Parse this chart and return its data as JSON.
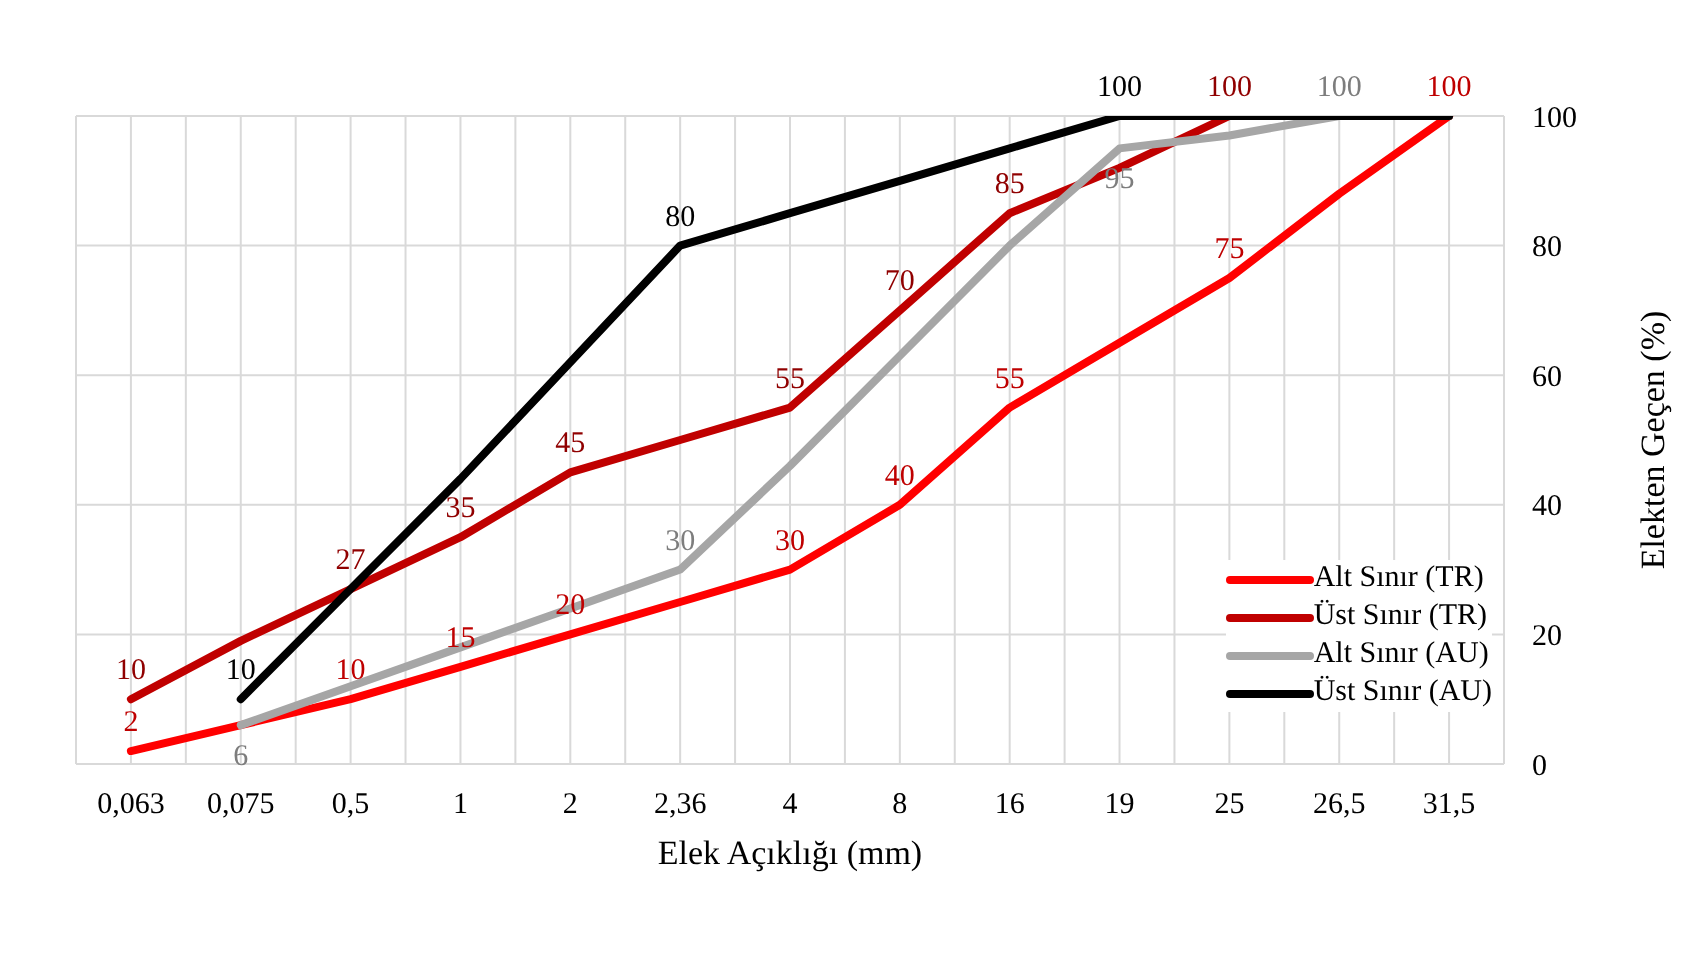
{
  "chart_data": {
    "type": "line",
    "xlabel": "Elek Açıklığı (mm)",
    "ylabel": "Elekten Geçen (%)",
    "categories": [
      "0,063",
      "0,075",
      "0,5",
      "1",
      "2",
      "2,36",
      "4",
      "8",
      "16",
      "19",
      "25",
      "26,5",
      "31,5"
    ],
    "series": [
      {
        "name": "Alt Sınır (TR)",
        "color": "#ff0000",
        "values": [
          2,
          6,
          10,
          15,
          20,
          25,
          30,
          40,
          55,
          65,
          75,
          88,
          100
        ],
        "value_labels": [
          "2",
          null,
          "10",
          "15",
          "20",
          null,
          "30",
          "40",
          "55",
          null,
          "75",
          null,
          "100"
        ]
      },
      {
        "name": "Üst Sınır (TR)",
        "color": "#c00000",
        "values": [
          10,
          19,
          27,
          35,
          45,
          50,
          55,
          70,
          85,
          92,
          100,
          100,
          100
        ],
        "value_labels": [
          "10",
          null,
          "27",
          "35",
          "45",
          null,
          "55",
          "70",
          "85",
          null,
          "100",
          null,
          null
        ]
      },
      {
        "name": "Alt Sınır (AU)",
        "color": "#a6a6a6",
        "values": [
          null,
          6,
          12,
          18,
          24,
          30,
          46,
          63,
          80,
          95,
          97,
          100,
          100
        ],
        "value_labels": [
          null,
          "6",
          null,
          null,
          null,
          "30",
          null,
          null,
          null,
          "95",
          null,
          "100",
          null
        ]
      },
      {
        "name": "Üst Sınır (AU)",
        "color": "#000000",
        "values": [
          null,
          10,
          27,
          44,
          62,
          80,
          85,
          90,
          95,
          100,
          100,
          100,
          100
        ],
        "value_labels": [
          null,
          "10",
          null,
          null,
          null,
          "80",
          null,
          null,
          null,
          "100",
          null,
          null,
          null
        ]
      }
    ],
    "ylim": [
      0,
      100
    ],
    "yticks": [
      0,
      20,
      40,
      60,
      80,
      100
    ],
    "grid": true,
    "legend": "bottom right",
    "marker": "none",
    "line_style": "solid"
  }
}
